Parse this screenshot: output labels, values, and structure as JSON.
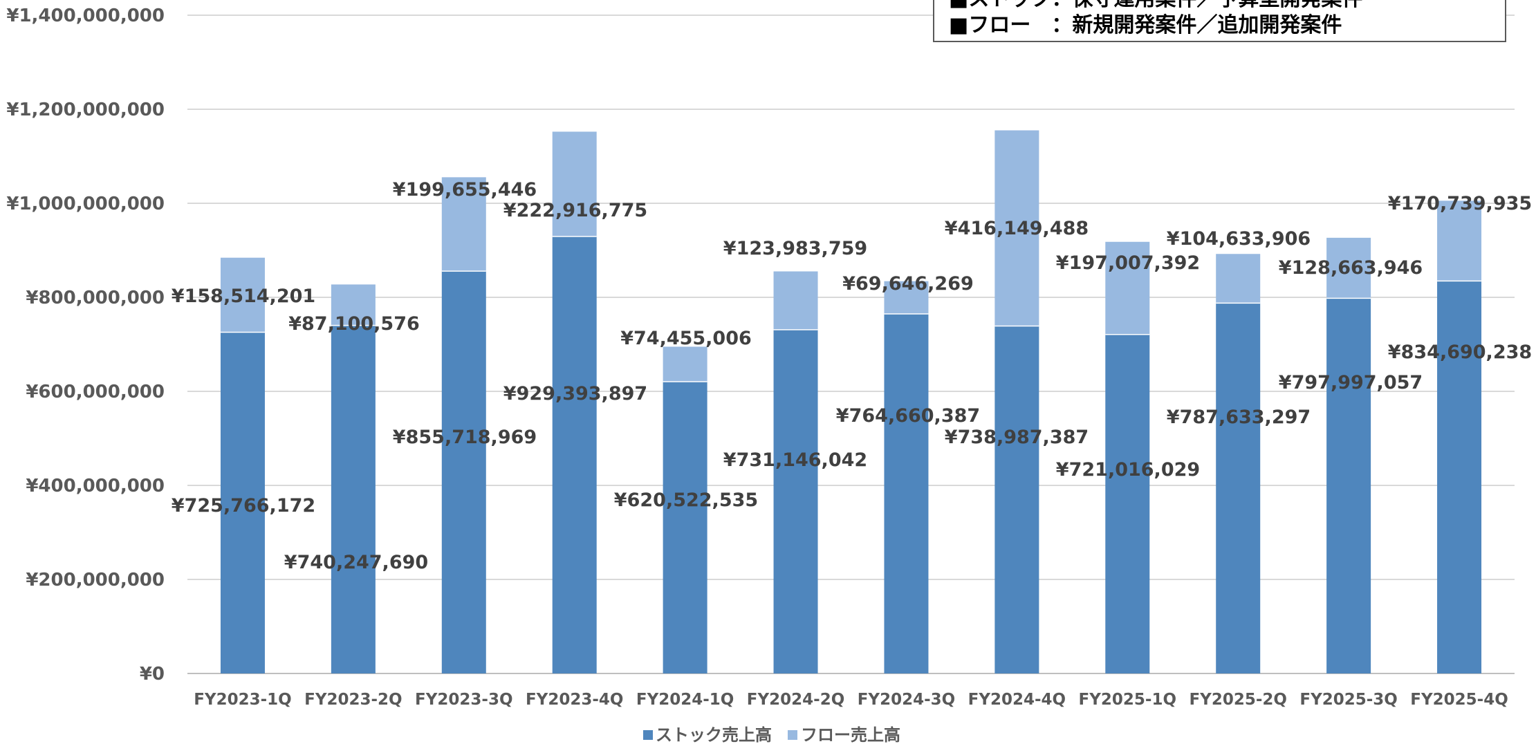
{
  "chart_data": {
    "type": "bar",
    "stacked": true,
    "categories": [
      "FY2023-1Q",
      "FY2023-2Q",
      "FY2023-3Q",
      "FY2023-4Q",
      "FY2024-1Q",
      "FY2024-2Q",
      "FY2024-3Q",
      "FY2024-4Q",
      "FY2025-1Q",
      "FY2025-2Q",
      "FY2025-3Q",
      "FY2025-4Q"
    ],
    "series": [
      {
        "name": "ストック売上高",
        "color": "#4F86BD",
        "values": [
          725766172,
          740247690,
          855718969,
          929393897,
          620522535,
          731146042,
          764660387,
          738987387,
          721016029,
          787633297,
          797997057,
          834690238
        ],
        "labels": [
          "¥725,766,172",
          "¥740,247,690",
          "¥855,718,969",
          "¥929,393,897",
          "¥620,522,535",
          "¥731,146,042",
          "¥764,660,387",
          "¥738,987,387",
          "¥721,016,029",
          "¥787,633,297",
          "¥797,997,057",
          "¥834,690,238"
        ]
      },
      {
        "name": "フロー売上高",
        "color": "#98B9E0",
        "values": [
          158514201,
          87100576,
          199655446,
          222916775,
          74455006,
          123983759,
          69646269,
          416149488,
          197007392,
          104633906,
          128663946,
          170739935
        ],
        "labels": [
          "¥158,514,201",
          "¥87,100,576",
          "¥199,655,446",
          "¥222,916,775",
          "¥74,455,006",
          "¥123,983,759",
          "¥69,646,269",
          "¥416,149,488",
          "¥197,007,392",
          "¥104,633,906",
          "¥128,663,946",
          "¥170,739,935"
        ]
      }
    ],
    "ylim": [
      0,
      1400000000
    ],
    "y_ticks": [
      0,
      200000000,
      400000000,
      600000000,
      800000000,
      1000000000,
      1200000000,
      1400000000
    ],
    "y_tick_labels": [
      "¥0",
      "¥200,000,000",
      "¥400,000,000",
      "¥600,000,000",
      "¥800,000,000",
      "¥1,000,000,000",
      "¥1,200,000,000",
      "¥1,400,000,000"
    ],
    "grid": true,
    "legend_position": "bottom",
    "title": "",
    "xlabel": "",
    "ylabel": ""
  },
  "note": {
    "line1": "■ストック：保守運用案件／予算型開発案件",
    "line2": "■フロー　：新規開発案件／追加開発案件"
  }
}
